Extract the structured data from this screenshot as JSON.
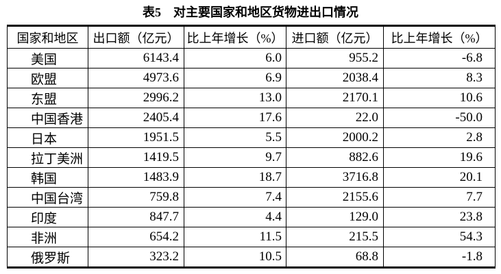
{
  "title": "表5　对主要国家和地区货物进出口情况",
  "table": {
    "headers": {
      "region": "国家和地区",
      "export_value": "出口额（亿元）",
      "export_growth": "比上年增长（%）",
      "import_value": "进口额（亿元）",
      "import_growth": "比上年增长（%）"
    },
    "rows": [
      {
        "region": "美国",
        "export_value": "6143.4",
        "export_growth": "6.0",
        "import_value": "955.2",
        "import_growth": "-6.8"
      },
      {
        "region": "欧盟",
        "export_value": "4973.6",
        "export_growth": "6.9",
        "import_value": "2038.4",
        "import_growth": "8.3"
      },
      {
        "region": "东盟",
        "export_value": "2996.2",
        "export_growth": "13.0",
        "import_value": "2170.1",
        "import_growth": "10.6"
      },
      {
        "region": "中国香港",
        "export_value": "2405.4",
        "export_growth": "17.6",
        "import_value": "22.0",
        "import_growth": "-50.0"
      },
      {
        "region": "日本",
        "export_value": "1951.5",
        "export_growth": "5.5",
        "import_value": "2000.2",
        "import_growth": "2.8"
      },
      {
        "region": "拉丁美洲",
        "export_value": "1419.5",
        "export_growth": "9.7",
        "import_value": "882.6",
        "import_growth": "19.6"
      },
      {
        "region": "韩国",
        "export_value": "1483.9",
        "export_growth": "18.7",
        "import_value": "3716.8",
        "import_growth": "20.1"
      },
      {
        "region": "中国台湾",
        "export_value": "759.8",
        "export_growth": "7.4",
        "import_value": "2155.6",
        "import_growth": "7.7"
      },
      {
        "region": "印度",
        "export_value": "847.7",
        "export_growth": "4.4",
        "import_value": "129.0",
        "import_growth": "23.8"
      },
      {
        "region": "非洲",
        "export_value": "654.2",
        "export_growth": "11.5",
        "import_value": "215.5",
        "import_growth": "54.3"
      },
      {
        "region": "俄罗斯",
        "export_value": "323.2",
        "export_growth": "10.5",
        "import_value": "68.8",
        "import_growth": "-1.8"
      }
    ]
  },
  "colors": {
    "text": "#000000",
    "border": "#000000",
    "background": "#ffffff"
  }
}
